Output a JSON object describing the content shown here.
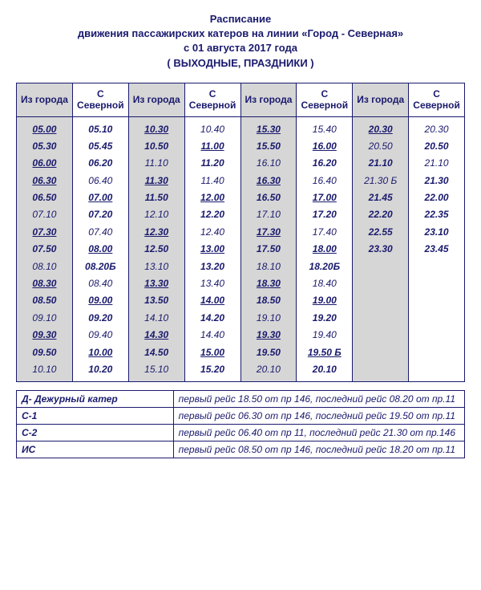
{
  "header": {
    "line1": "Расписание",
    "line2": "движения пассажирских катеров на линии «Город - Северная»",
    "line3": "с  01  августа  2017 года",
    "line4": "( ВЫХОДНЫЕ,  ПРАЗДНИКИ )"
  },
  "columnHeaders": {
    "fromCity": "Из города",
    "fromNorth": "С Северной"
  },
  "columns": [
    {
      "bg": "col-gray",
      "head": "fromCity",
      "times": [
        {
          "t": "05.00",
          "u": true
        },
        {
          "t": "05.30"
        },
        {
          "t": "06.00",
          "u": true
        },
        {
          "t": "06.30",
          "u": true
        },
        {
          "t": "06.50"
        },
        {
          "t": "07.10",
          "nb": true
        },
        {
          "t": "07.30",
          "u": true
        },
        {
          "t": "07.50"
        },
        {
          "t": "08.10",
          "nb": true
        },
        {
          "t": "08.30",
          "u": true
        },
        {
          "t": "08.50"
        },
        {
          "t": "09.10",
          "nb": true
        },
        {
          "t": "09.30",
          "u": true
        },
        {
          "t": "09.50"
        },
        {
          "t": "10.10",
          "nb": true
        }
      ]
    },
    {
      "bg": "col-white",
      "head": "fromNorth",
      "times": [
        {
          "t": "05.10"
        },
        {
          "t": "05.45"
        },
        {
          "t": "06.20"
        },
        {
          "t": "06.40",
          "nb": true
        },
        {
          "t": "07.00",
          "u": true
        },
        {
          "t": "07.20"
        },
        {
          "t": "07.40",
          "nb": true
        },
        {
          "t": "08.00",
          "u": true
        },
        {
          "t": "08.20Б"
        },
        {
          "t": "08.40",
          "nb": true
        },
        {
          "t": "09.00",
          "u": true
        },
        {
          "t": "09.20"
        },
        {
          "t": "09.40",
          "nb": true
        },
        {
          "t": "10.00",
          "u": true
        },
        {
          "t": "10.20"
        }
      ]
    },
    {
      "bg": "col-gray",
      "head": "fromCity",
      "times": [
        {
          "t": "10.30",
          "u": true
        },
        {
          "t": "10.50"
        },
        {
          "t": "11.10",
          "nb": true
        },
        {
          "t": "11.30",
          "u": true
        },
        {
          "t": "11.50"
        },
        {
          "t": "12.10",
          "nb": true
        },
        {
          "t": "12.30",
          "u": true
        },
        {
          "t": "12.50"
        },
        {
          "t": "13.10",
          "nb": true
        },
        {
          "t": "13.30",
          "u": true
        },
        {
          "t": "13.50"
        },
        {
          "t": "14.10",
          "nb": true
        },
        {
          "t": "14.30",
          "u": true
        },
        {
          "t": "14.50"
        },
        {
          "t": "15.10",
          "nb": true
        }
      ]
    },
    {
      "bg": "col-white",
      "head": "fromNorth",
      "times": [
        {
          "t": "10.40",
          "nb": true
        },
        {
          "t": "11.00",
          "u": true
        },
        {
          "t": "11.20"
        },
        {
          "t": "11.40",
          "nb": true
        },
        {
          "t": "12.00",
          "u": true
        },
        {
          "t": "12.20"
        },
        {
          "t": "12.40",
          "nb": true
        },
        {
          "t": "13.00",
          "u": true
        },
        {
          "t": "13.20"
        },
        {
          "t": "13.40",
          "nb": true
        },
        {
          "t": "14.00",
          "u": true
        },
        {
          "t": "14.20"
        },
        {
          "t": "14.40",
          "nb": true
        },
        {
          "t": "15.00",
          "u": true
        },
        {
          "t": "15.20"
        }
      ]
    },
    {
      "bg": "col-gray",
      "head": "fromCity",
      "times": [
        {
          "t": "15.30",
          "u": true
        },
        {
          "t": "15.50"
        },
        {
          "t": "16.10",
          "nb": true
        },
        {
          "t": "16.30",
          "u": true
        },
        {
          "t": "16.50"
        },
        {
          "t": "17.10",
          "nb": true
        },
        {
          "t": "17.30",
          "u": true
        },
        {
          "t": "17.50"
        },
        {
          "t": "18.10",
          "nb": true
        },
        {
          "t": "18.30",
          "u": true
        },
        {
          "t": "18.50"
        },
        {
          "t": "19.10",
          "nb": true
        },
        {
          "t": "19.30",
          "u": true
        },
        {
          "t": "19.50"
        },
        {
          "t": "20.10",
          "nb": true
        }
      ]
    },
    {
      "bg": "col-white",
      "head": "fromNorth",
      "times": [
        {
          "t": "15.40",
          "nb": true
        },
        {
          "t": "16.00",
          "u": true
        },
        {
          "t": "16.20"
        },
        {
          "t": "16.40",
          "nb": true
        },
        {
          "t": "17.00",
          "u": true
        },
        {
          "t": "17.20"
        },
        {
          "t": "17.40",
          "nb": true
        },
        {
          "t": "18.00",
          "u": true
        },
        {
          "t": "18.20Б"
        },
        {
          "t": "18.40",
          "nb": true
        },
        {
          "t": "19.00",
          "u": true
        },
        {
          "t": "19.20"
        },
        {
          "t": "19.40",
          "nb": true
        },
        {
          "t": "19.50 Б",
          "u": true
        },
        {
          "t": "20.10"
        }
      ]
    },
    {
      "bg": "col-gray",
      "head": "fromCity",
      "times": [
        {
          "t": "20.30",
          "u": true
        },
        {
          "t": "20.50",
          "nb": true
        },
        {
          "t": "21.10"
        },
        {
          "t": "21.30 Б",
          "nb": true
        },
        {
          "t": "21.45"
        },
        {
          "t": "22.20"
        },
        {
          "t": "22.55"
        },
        {
          "t": "23.30"
        }
      ]
    },
    {
      "bg": "col-white",
      "head": "fromNorth",
      "times": [
        {
          "t": "20.30",
          "nb": true
        },
        {
          "t": "20.50"
        },
        {
          "t": "21.10",
          "nb": true
        },
        {
          "t": "21.30"
        },
        {
          "t": "22.00"
        },
        {
          "t": "22.35"
        },
        {
          "t": "23.10"
        },
        {
          "t": "23.45"
        }
      ]
    }
  ],
  "legend": [
    {
      "key": "Д- Дежурный катер",
      "val": "первый рейс 18.50 от пр 146,  последний рейс  08.20 от пр.11"
    },
    {
      "key": "С-1",
      "val": "первый рейс 06.30 от пр 146,  последний рейс  19.50 от пр.11"
    },
    {
      "key": "С-2",
      "val": "первый рейс  06.40 от пр 11,  последний рейс  21.30 от пр.146"
    },
    {
      "key": "ИС",
      "val": "первый рейс 08.50 от пр 146,  последний рейс  18.20 от пр.11"
    }
  ]
}
